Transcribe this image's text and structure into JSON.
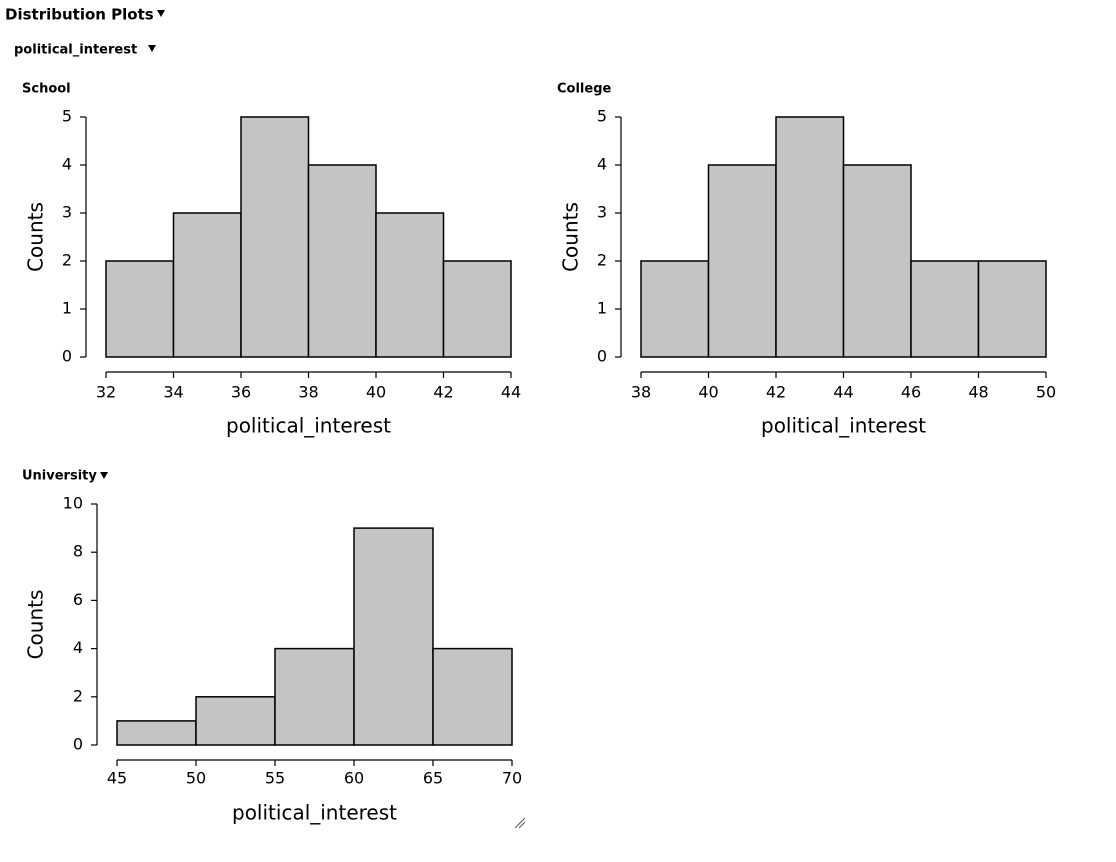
{
  "header": {
    "title": "Distribution Plots",
    "subtitle": "political_interest"
  },
  "chart_data": [
    {
      "type": "histogram",
      "title": "School",
      "x_label": "political_interest",
      "y_label": "Counts",
      "bins": [
        32,
        34,
        36,
        38,
        40,
        42,
        44
      ],
      "values": [
        2,
        3,
        5,
        4,
        3,
        2
      ],
      "color": "#c4c4c4",
      "xlim": [
        32,
        44
      ],
      "xticks": [
        32,
        34,
        36,
        38,
        40,
        42,
        44
      ],
      "ylim": [
        0,
        5
      ],
      "yticks": [
        0,
        1,
        2,
        3,
        4,
        5
      ]
    },
    {
      "type": "histogram",
      "title": "College",
      "x_label": "political_interest",
      "y_label": "Counts",
      "bins": [
        38,
        40,
        42,
        44,
        46,
        48,
        50
      ],
      "values": [
        2,
        4,
        5,
        4,
        2,
        2
      ],
      "color": "#c4c4c4",
      "xlim": [
        38,
        50
      ],
      "xticks": [
        38,
        40,
        42,
        44,
        46,
        48,
        50
      ],
      "ylim": [
        0,
        5
      ],
      "yticks": [
        0,
        1,
        2,
        3,
        4,
        5
      ]
    },
    {
      "type": "histogram",
      "title": "University",
      "x_label": "political_interest",
      "y_label": "Counts",
      "bins": [
        45,
        50,
        55,
        60,
        65,
        70
      ],
      "values": [
        1,
        2,
        4,
        9,
        4
      ],
      "color": "#c4c4c4",
      "xlim": [
        45,
        70
      ],
      "xticks": [
        45,
        50,
        55,
        60,
        65,
        70
      ],
      "ylim": [
        0,
        10
      ],
      "yticks": [
        0,
        2,
        4,
        6,
        8,
        10
      ]
    }
  ]
}
